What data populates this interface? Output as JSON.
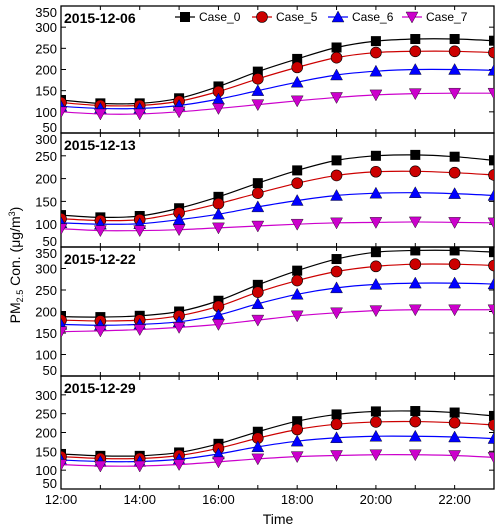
{
  "figure": {
    "ylabel_main": "PM",
    "ylabel_sub": "2.5",
    "ylabel_rest": " Con. (μg/m",
    "ylabel_sup": "3",
    "ylabel_end": ")",
    "xlabel": "Time"
  },
  "legend": [
    {
      "name": "Case_0",
      "color": "#000000",
      "marker": "square"
    },
    {
      "name": "Case_5",
      "color": "#cc0000",
      "marker": "circle"
    },
    {
      "name": "Case_6",
      "color": "#0000ff",
      "marker": "triangle-up"
    },
    {
      "name": "Case_7",
      "color": "#cc00cc",
      "marker": "triangle-down"
    }
  ],
  "chart_data": [
    {
      "type": "line",
      "title": "2015-12-06",
      "x": [
        "12:00",
        "13:00",
        "14:00",
        "15:00",
        "16:00",
        "17:00",
        "18:00",
        "19:00",
        "20:00",
        "21:00",
        "22:00",
        "23:00"
      ],
      "ylim": [
        50,
        350
      ],
      "yticks": [
        50,
        100,
        150,
        200,
        250,
        300,
        350
      ],
      "series": [
        {
          "name": "Case_0",
          "values": [
            128,
            120,
            120,
            132,
            160,
            195,
            225,
            252,
            267,
            272,
            272,
            268
          ]
        },
        {
          "name": "Case_5",
          "values": [
            122,
            115,
            115,
            125,
            148,
            178,
            205,
            228,
            240,
            243,
            243,
            240
          ]
        },
        {
          "name": "Case_6",
          "values": [
            113,
            108,
            108,
            115,
            130,
            150,
            170,
            187,
            196,
            200,
            200,
            198
          ]
        },
        {
          "name": "Case_7",
          "values": [
            100,
            95,
            95,
            100,
            108,
            117,
            126,
            134,
            140,
            143,
            144,
            144
          ]
        }
      ]
    },
    {
      "type": "line",
      "title": "2015-12-13",
      "x": [
        "12:00",
        "13:00",
        "14:00",
        "15:00",
        "16:00",
        "17:00",
        "18:00",
        "19:00",
        "20:00",
        "21:00",
        "22:00",
        "23:00"
      ],
      "ylim": [
        50,
        300
      ],
      "yticks": [
        50,
        100,
        150,
        200,
        250,
        300
      ],
      "series": [
        {
          "name": "Case_0",
          "values": [
            120,
            115,
            118,
            135,
            160,
            190,
            218,
            240,
            250,
            252,
            248,
            240
          ]
        },
        {
          "name": "Case_5",
          "values": [
            112,
            108,
            110,
            125,
            145,
            168,
            190,
            207,
            215,
            216,
            213,
            208
          ]
        },
        {
          "name": "Case_6",
          "values": [
            103,
            100,
            101,
            110,
            122,
            138,
            152,
            163,
            168,
            169,
            167,
            163
          ]
        },
        {
          "name": "Case_7",
          "values": [
            90,
            86,
            86,
            88,
            92,
            96,
            100,
            103,
            104,
            105,
            104,
            103
          ]
        }
      ]
    },
    {
      "type": "line",
      "title": "2015-12-22",
      "x": [
        "12:00",
        "13:00",
        "14:00",
        "15:00",
        "16:00",
        "17:00",
        "18:00",
        "19:00",
        "20:00",
        "21:00",
        "22:00",
        "23:00"
      ],
      "ylim": [
        50,
        350
      ],
      "yticks": [
        50,
        100,
        150,
        200,
        250,
        300,
        350
      ],
      "series": [
        {
          "name": "Case_0",
          "values": [
            188,
            187,
            190,
            200,
            225,
            262,
            295,
            322,
            338,
            342,
            342,
            338
          ]
        },
        {
          "name": "Case_5",
          "values": [
            180,
            178,
            180,
            190,
            212,
            245,
            272,
            293,
            305,
            310,
            310,
            307
          ]
        },
        {
          "name": "Case_6",
          "values": [
            170,
            168,
            170,
            176,
            192,
            218,
            240,
            255,
            263,
            266,
            266,
            264
          ]
        },
        {
          "name": "Case_7",
          "values": [
            153,
            155,
            158,
            163,
            170,
            180,
            190,
            197,
            202,
            204,
            204,
            204
          ]
        }
      ]
    },
    {
      "type": "line",
      "title": "2015-12-29",
      "x": [
        "12:00",
        "13:00",
        "14:00",
        "15:00",
        "16:00",
        "17:00",
        "18:00",
        "19:00",
        "20:00",
        "21:00",
        "22:00",
        "23:00"
      ],
      "ylim": [
        50,
        350
      ],
      "yticks": [
        50,
        100,
        150,
        200,
        250,
        300
      ],
      "series": [
        {
          "name": "Case_0",
          "values": [
            143,
            138,
            138,
            147,
            170,
            202,
            230,
            248,
            256,
            257,
            253,
            244
          ]
        },
        {
          "name": "Case_5",
          "values": [
            136,
            131,
            131,
            139,
            158,
            185,
            208,
            222,
            228,
            229,
            226,
            220
          ]
        },
        {
          "name": "Case_6",
          "values": [
            127,
            123,
            123,
            129,
            143,
            162,
            177,
            186,
            190,
            190,
            188,
            184
          ]
        },
        {
          "name": "Case_7",
          "values": [
            115,
            111,
            111,
            115,
            122,
            130,
            136,
            139,
            141,
            141,
            139,
            134
          ]
        }
      ]
    }
  ]
}
